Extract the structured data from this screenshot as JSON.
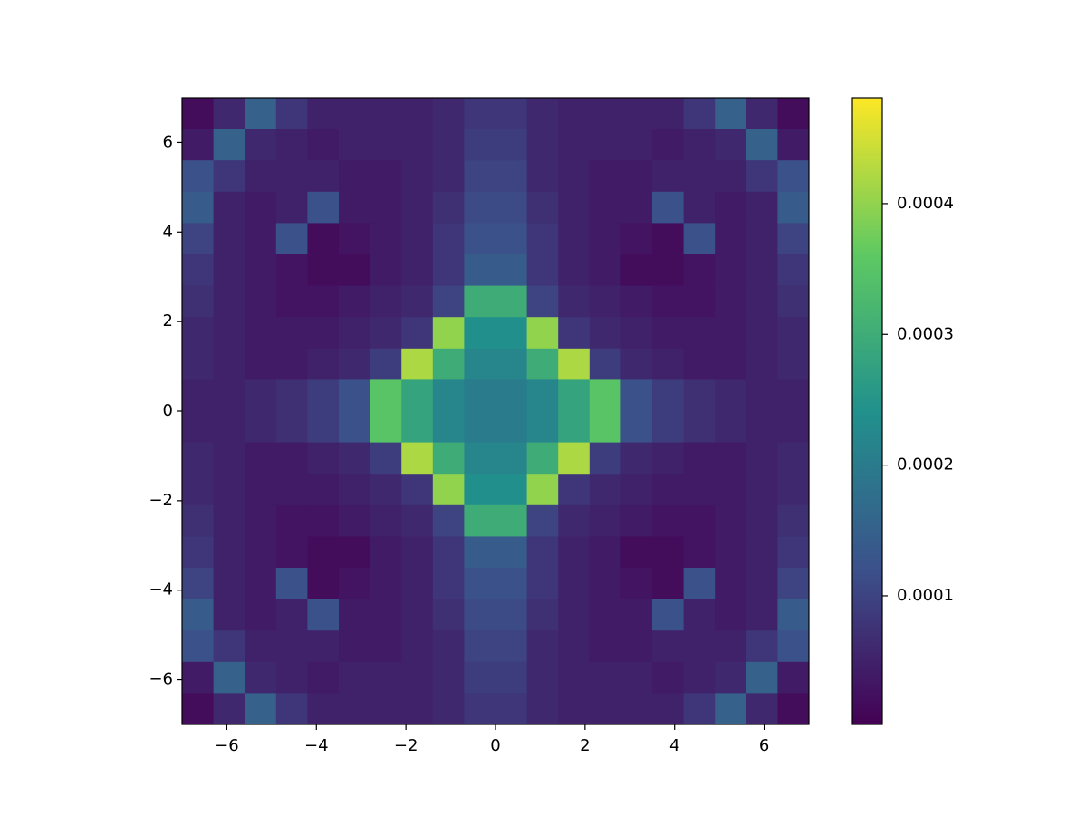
{
  "chart_data": {
    "type": "heatmap",
    "colormap": "viridis",
    "xlim": [
      -7,
      7
    ],
    "ylim": [
      -7,
      7
    ],
    "clim": [
      1.6e-06,
      0.000481
    ],
    "xticks": [
      {
        "value": -6,
        "label": "−6"
      },
      {
        "value": -4,
        "label": "−4"
      },
      {
        "value": -2,
        "label": "−2"
      },
      0,
      2,
      4,
      6
    ],
    "yticks": [
      {
        "value": -6,
        "label": "−6"
      },
      {
        "value": -4,
        "label": "−4"
      },
      {
        "value": -2,
        "label": "−2"
      },
      0,
      2,
      4,
      6
    ],
    "cticks": [
      0.0001,
      0.0002,
      0.0003,
      0.0004
    ],
    "z": [
      [
        2e-05,
        6e-05,
        0.00015,
        8e-05,
        5e-05,
        5e-05,
        5e-05,
        5e-05,
        6e-05,
        8e-05,
        8e-05,
        6e-05,
        5e-05,
        5e-05,
        5e-05,
        5e-05,
        8e-05,
        0.00015,
        6e-05,
        2e-05
      ],
      [
        4e-05,
        0.00015,
        6e-05,
        5e-05,
        4e-05,
        5e-05,
        5e-05,
        5e-05,
        6e-05,
        9e-05,
        9e-05,
        6e-05,
        5e-05,
        5e-05,
        5e-05,
        4e-05,
        5e-05,
        6e-05,
        0.00015,
        4e-05
      ],
      [
        0.00012,
        8e-05,
        5e-05,
        5e-05,
        5e-05,
        4e-05,
        4e-05,
        5e-05,
        6e-05,
        0.0001,
        0.0001,
        6e-05,
        5e-05,
        4e-05,
        4e-05,
        5e-05,
        5e-05,
        5e-05,
        8e-05,
        0.00012
      ],
      [
        0.00014,
        5e-05,
        4e-05,
        5e-05,
        0.00012,
        4e-05,
        4e-05,
        5e-05,
        7e-05,
        0.00011,
        0.00011,
        7e-05,
        5e-05,
        4e-05,
        4e-05,
        0.00012,
        5e-05,
        4e-05,
        5e-05,
        0.00014
      ],
      [
        0.0001,
        5e-05,
        4e-05,
        0.00012,
        2e-05,
        3e-05,
        4e-05,
        5e-05,
        8e-05,
        0.00012,
        0.00012,
        8e-05,
        5e-05,
        4e-05,
        3e-05,
        2e-05,
        0.00012,
        4e-05,
        5e-05,
        0.0001
      ],
      [
        8e-05,
        5e-05,
        4e-05,
        3e-05,
        2e-05,
        2e-05,
        4e-05,
        5e-05,
        8e-05,
        0.00014,
        0.00014,
        8e-05,
        5e-05,
        4e-05,
        2e-05,
        2e-05,
        3e-05,
        4e-05,
        5e-05,
        8e-05
      ],
      [
        7e-05,
        5e-05,
        4e-05,
        3e-05,
        3e-05,
        4e-05,
        5e-05,
        6e-05,
        0.0001,
        0.0003,
        0.0003,
        0.0001,
        6e-05,
        5e-05,
        4e-05,
        3e-05,
        3e-05,
        4e-05,
        5e-05,
        7e-05
      ],
      [
        6e-05,
        5e-05,
        4e-05,
        4e-05,
        4e-05,
        5e-05,
        6e-05,
        8e-05,
        0.0004,
        0.00024,
        0.00024,
        0.0004,
        8e-05,
        6e-05,
        5e-05,
        4e-05,
        4e-05,
        4e-05,
        5e-05,
        6e-05
      ],
      [
        6e-05,
        5e-05,
        4e-05,
        4e-05,
        5e-05,
        6e-05,
        9e-05,
        0.00042,
        0.0003,
        0.00022,
        0.00022,
        0.0003,
        0.00042,
        9e-05,
        6e-05,
        5e-05,
        4e-05,
        4e-05,
        5e-05,
        6e-05
      ],
      [
        5e-05,
        5e-05,
        6e-05,
        7e-05,
        9e-05,
        0.00012,
        0.00035,
        0.00028,
        0.00022,
        0.0002,
        0.0002,
        0.00022,
        0.00028,
        0.00035,
        0.00012,
        9e-05,
        7e-05,
        6e-05,
        5e-05,
        5e-05
      ],
      [
        5e-05,
        5e-05,
        6e-05,
        7e-05,
        9e-05,
        0.00012,
        0.00035,
        0.00028,
        0.00022,
        0.0002,
        0.0002,
        0.00022,
        0.00028,
        0.00035,
        0.00012,
        9e-05,
        7e-05,
        6e-05,
        5e-05,
        5e-05
      ],
      [
        6e-05,
        5e-05,
        4e-05,
        4e-05,
        5e-05,
        6e-05,
        9e-05,
        0.00042,
        0.0003,
        0.00022,
        0.00022,
        0.0003,
        0.00042,
        9e-05,
        6e-05,
        5e-05,
        4e-05,
        4e-05,
        5e-05,
        6e-05
      ],
      [
        6e-05,
        5e-05,
        4e-05,
        4e-05,
        4e-05,
        5e-05,
        6e-05,
        8e-05,
        0.0004,
        0.00024,
        0.00024,
        0.0004,
        8e-05,
        6e-05,
        5e-05,
        4e-05,
        4e-05,
        4e-05,
        5e-05,
        6e-05
      ],
      [
        7e-05,
        5e-05,
        4e-05,
        3e-05,
        3e-05,
        4e-05,
        5e-05,
        6e-05,
        0.0001,
        0.0003,
        0.0003,
        0.0001,
        6e-05,
        5e-05,
        4e-05,
        3e-05,
        3e-05,
        4e-05,
        5e-05,
        7e-05
      ],
      [
        8e-05,
        5e-05,
        4e-05,
        3e-05,
        2e-05,
        2e-05,
        4e-05,
        5e-05,
        8e-05,
        0.00014,
        0.00014,
        8e-05,
        5e-05,
        4e-05,
        2e-05,
        2e-05,
        3e-05,
        4e-05,
        5e-05,
        8e-05
      ],
      [
        0.0001,
        5e-05,
        4e-05,
        0.00012,
        2e-05,
        3e-05,
        4e-05,
        5e-05,
        8e-05,
        0.00012,
        0.00012,
        8e-05,
        5e-05,
        4e-05,
        3e-05,
        2e-05,
        0.00012,
        4e-05,
        5e-05,
        0.0001
      ],
      [
        0.00014,
        5e-05,
        4e-05,
        5e-05,
        0.00012,
        4e-05,
        4e-05,
        5e-05,
        7e-05,
        0.00011,
        0.00011,
        7e-05,
        5e-05,
        4e-05,
        4e-05,
        0.00012,
        5e-05,
        4e-05,
        5e-05,
        0.00014
      ],
      [
        0.00012,
        8e-05,
        5e-05,
        5e-05,
        5e-05,
        4e-05,
        4e-05,
        5e-05,
        6e-05,
        0.0001,
        0.0001,
        6e-05,
        5e-05,
        4e-05,
        4e-05,
        5e-05,
        5e-05,
        5e-05,
        8e-05,
        0.00012
      ],
      [
        4e-05,
        0.00015,
        6e-05,
        5e-05,
        4e-05,
        5e-05,
        5e-05,
        5e-05,
        6e-05,
        9e-05,
        9e-05,
        6e-05,
        5e-05,
        5e-05,
        5e-05,
        4e-05,
        5e-05,
        6e-05,
        0.00015,
        4e-05
      ],
      [
        2e-05,
        6e-05,
        0.00015,
        8e-05,
        5e-05,
        5e-05,
        5e-05,
        5e-05,
        6e-05,
        8e-05,
        8e-05,
        6e-05,
        5e-05,
        5e-05,
        5e-05,
        5e-05,
        8e-05,
        0.00015,
        6e-05,
        2e-05
      ]
    ]
  }
}
